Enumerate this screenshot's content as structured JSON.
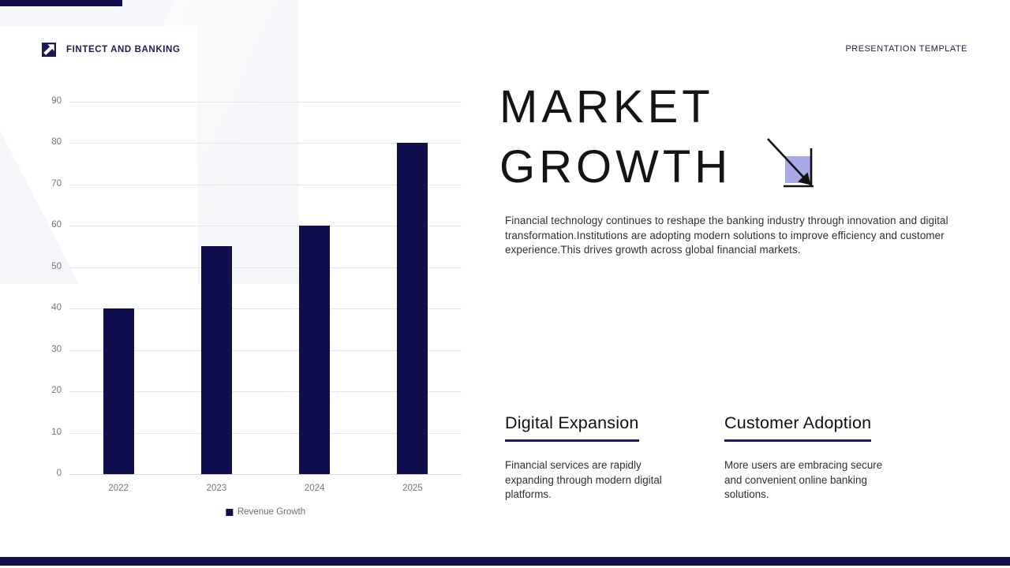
{
  "slide": {
    "brand": "FINTECT AND BANKING",
    "template_label": "PRESENTATION TEMPLATE",
    "title_line1": "MARKET",
    "title_line2": "GROWTH",
    "intro": "Financial technology continues to reshape the banking industry through innovation and digital transformation.Institutions are adopting modern solutions to improve efficiency and customer experience.This drives growth across global financial markets.",
    "sections": [
      {
        "heading": "Digital Expansion",
        "body": "Financial services are rapidly expanding through modern digital platforms."
      },
      {
        "heading": "Customer Adoption",
        "body": "More users are embracing secure and convenient online banking solutions."
      }
    ]
  },
  "chart_data": {
    "type": "bar",
    "categories": [
      "2022",
      "2023",
      "2024",
      "2025"
    ],
    "values": [
      40,
      55,
      60,
      80
    ],
    "series": [
      {
        "name": "Revenue Growth",
        "values": [
          40,
          55,
          60,
          80
        ]
      }
    ],
    "title": "",
    "xlabel": "",
    "ylabel": "",
    "ylim": [
      0,
      90
    ],
    "ytick_step": 10,
    "grid": true,
    "legend": {
      "label": "Revenue Growth",
      "position": "bottom-center"
    },
    "bar_color": "#100e4d"
  },
  "colors": {
    "navy": "#1d1b55",
    "bar_navy": "#100e4d",
    "accent_lavender": "#a9a9e8",
    "bg_gray": "#f5f6f9",
    "axis_text": "#757575",
    "body_text": "#2f2f2f",
    "gridline": "#e7e7ea"
  }
}
